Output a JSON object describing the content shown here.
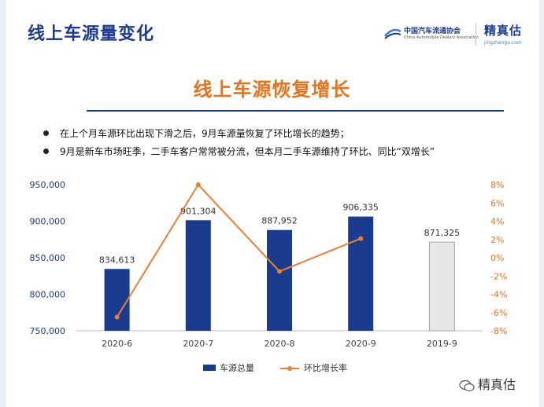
{
  "header": {
    "title": "线上车源量变化",
    "association_cn": "中国汽车流通协会",
    "association_en": "China Automobile Dealers Association",
    "brand": "精真估",
    "brand_url": "jingzhengu.com"
  },
  "headline": "线上车源恢复增长",
  "bullets": [
    "在上个月车源环比出现下滑之后，9月车源量恢复了环比增长的趋势；",
    "9月是新车市场旺季，二手车客户常常被分流，但本月二手车源维持了环比、同比“双增长”"
  ],
  "chart_data": {
    "type": "bar",
    "categories": [
      "2020-6",
      "2020-7",
      "2020-8",
      "2020-9",
      "2019-9"
    ],
    "series": [
      {
        "name": "车源总量",
        "type": "bar",
        "values": [
          834613,
          901304,
          887952,
          906335,
          871325
        ],
        "data_labels": [
          "834,613",
          "901,304",
          "887,952",
          "906,335",
          "871,325"
        ],
        "colors": [
          "#1b3b8f",
          "#1b3b8f",
          "#1b3b8f",
          "#1b3b8f",
          "#e6e6e6"
        ],
        "axis": "left"
      },
      {
        "name": "环比增长率",
        "type": "line",
        "values": [
          -6.5,
          8.0,
          -1.5,
          2.1,
          null
        ],
        "color": "#ed7d31",
        "axis": "right"
      }
    ],
    "y_left": {
      "min": 750000,
      "max": 950000,
      "ticks": [
        750000,
        800000,
        850000,
        900000,
        950000
      ],
      "tick_labels": [
        "750,000",
        "800,000",
        "850,000",
        "900,000",
        "950,000"
      ]
    },
    "y_right": {
      "min": -8,
      "max": 8,
      "ticks": [
        -8,
        -6,
        -4,
        -2,
        0,
        2,
        4,
        6,
        8
      ],
      "tick_labels": [
        "-8%",
        "-6%",
        "-4%",
        "-2%",
        "0%",
        "2%",
        "4%",
        "6%",
        "8%"
      ]
    },
    "legend_position": "bottom",
    "grid": false
  },
  "watermark": "精真估",
  "colors": {
    "primary": "#1b3b8f",
    "accent": "#e8731a",
    "line": "#ed7d31",
    "bar_prior_year": "#e6e6e6"
  }
}
